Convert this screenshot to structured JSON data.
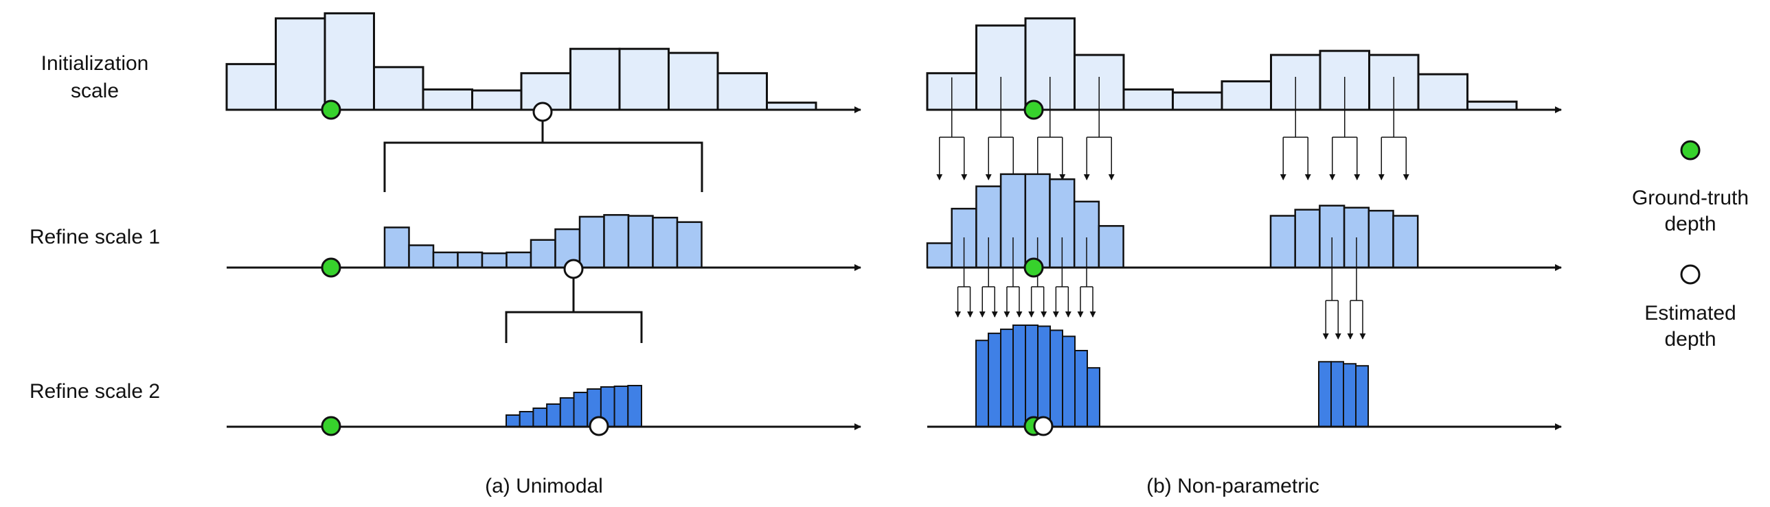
{
  "row_labels": {
    "init_line1": "Initialization",
    "init_line2": "scale",
    "refine1": "Refine scale 1",
    "refine2": "Refine scale 2"
  },
  "legend": {
    "gt_line1": "Ground-truth",
    "gt_line2": "depth",
    "est_line1": "Estimated",
    "est_line2": "depth"
  },
  "captions": {
    "left": "(a) Unimodal",
    "right": "(b) Non-parametric"
  },
  "colors": {
    "init_fill": "#e2edfb",
    "refine1_fill": "#a7c8f5",
    "refine2_fill": "#3f80e6",
    "ground_truth": "#37d22c",
    "estimated": "#ffffff",
    "stroke": "#111111"
  },
  "panels": {
    "unimodal": {
      "init_bins": [
        0.45,
        0.9,
        0.95,
        0.42,
        0.2,
        0.19,
        0.36,
        0.6,
        0.6,
        0.56,
        0.36,
        0.07
      ],
      "refine1_bins": [
        0.45,
        0.25,
        0.17,
        0.17,
        0.16,
        0.17,
        0.31,
        0.43,
        0.57,
        0.59,
        0.58,
        0.56,
        0.51
      ],
      "refine2_bins": [
        0.17,
        0.22,
        0.27,
        0.33,
        0.42,
        0.5,
        0.55,
        0.58,
        0.59,
        0.6
      ]
    },
    "non_parametric": {
      "init_bins": [
        0.36,
        0.83,
        0.9,
        0.54,
        0.2,
        0.17,
        0.28,
        0.54,
        0.58,
        0.54,
        0.35,
        0.08
      ],
      "refine1_left": [
        0.24,
        0.58,
        0.8,
        0.92,
        0.92,
        0.87,
        0.65,
        0.41
      ],
      "refine1_right": [
        0.51,
        0.57,
        0.61,
        0.59,
        0.56,
        0.51
      ],
      "refine2_left": [
        0.85,
        0.92,
        0.96,
        1.0,
        1.0,
        0.99,
        0.95,
        0.89,
        0.75,
        0.58
      ],
      "refine2_right": [
        0.64,
        0.64,
        0.62,
        0.6
      ]
    }
  }
}
